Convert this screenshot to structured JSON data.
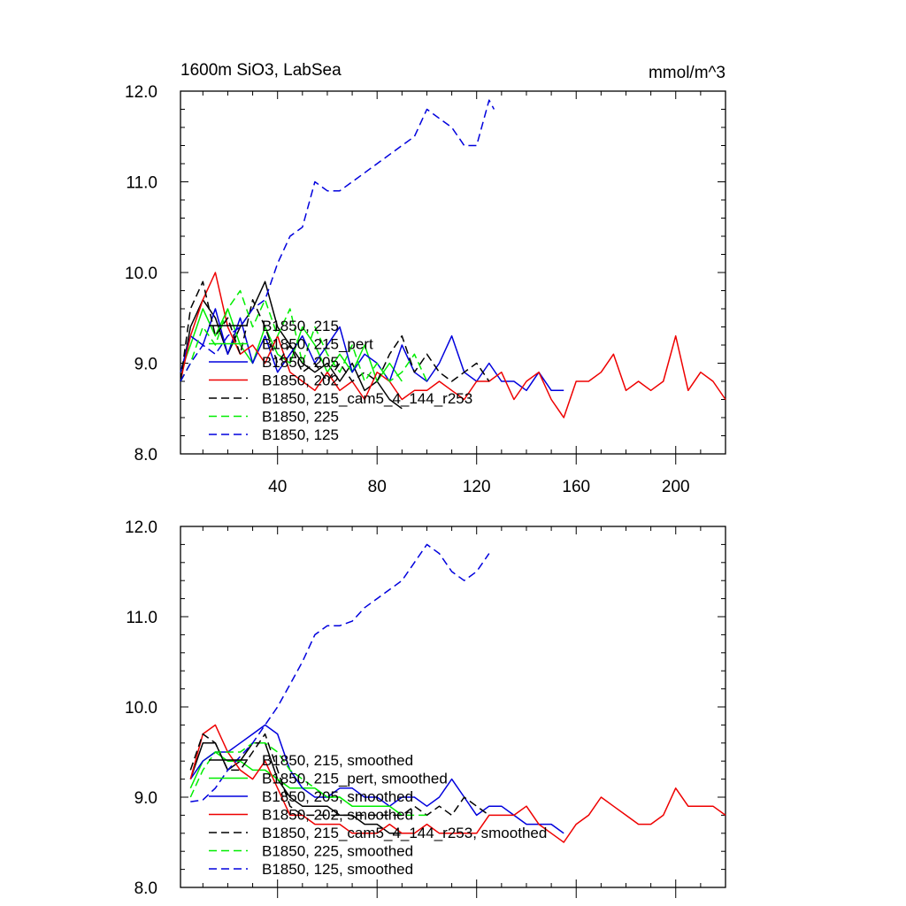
{
  "chart_data": [
    {
      "type": "line",
      "title": "1600m SiO3, LabSea",
      "units": "mmol/m^3",
      "xlim": [
        1,
        220
      ],
      "ylim": [
        8.0,
        12.0
      ],
      "x_ticks": [
        "40",
        "80",
        "120",
        "160",
        "200"
      ],
      "y_ticks": [
        "8.0",
        "9.0",
        "10.0",
        "11.0",
        "12.0"
      ],
      "grid": false,
      "legend_placement": "lower-left",
      "series": [
        {
          "name": "B1850, 215",
          "color": "#000000",
          "dash": "solid",
          "x": [
            1,
            5,
            10,
            15,
            20,
            25,
            30,
            35,
            40,
            45,
            50,
            55,
            60,
            65,
            70,
            75,
            80,
            85,
            90
          ],
          "y": [
            8.8,
            9.4,
            9.7,
            9.5,
            9.1,
            9.4,
            9.6,
            9.9,
            9.4,
            9.2,
            9.0,
            8.9,
            9.0,
            8.8,
            9.0,
            8.7,
            8.8,
            8.6,
            8.5
          ]
        },
        {
          "name": "B1850, 215_pert",
          "color": "#00ee00",
          "dash": "solid",
          "x": [
            1,
            5,
            10,
            15,
            20,
            25,
            30,
            35,
            40,
            45,
            50,
            55,
            60,
            65,
            70,
            75,
            80,
            85,
            90
          ],
          "y": [
            8.9,
            9.2,
            9.6,
            9.3,
            9.6,
            9.2,
            9.0,
            9.4,
            9.1,
            9.0,
            9.4,
            9.2,
            8.9,
            9.1,
            8.9,
            9.2,
            8.8,
            9.0,
            8.8
          ]
        },
        {
          "name": "B1850, 205",
          "color": "#0000dd",
          "dash": "solid",
          "x": [
            1,
            5,
            10,
            15,
            20,
            25,
            30,
            35,
            40,
            45,
            50,
            55,
            60,
            65,
            70,
            75,
            80,
            85,
            90,
            95,
            100,
            105,
            110,
            115,
            120,
            125,
            130,
            135,
            140,
            145,
            150,
            155
          ],
          "y": [
            8.9,
            9.3,
            9.2,
            9.6,
            9.1,
            9.5,
            9.0,
            9.3,
            8.9,
            9.1,
            9.3,
            9.0,
            9.2,
            9.4,
            8.9,
            9.1,
            9.0,
            8.8,
            9.2,
            8.9,
            8.8,
            9.0,
            9.3,
            8.9,
            8.8,
            9.0,
            8.8,
            8.8,
            8.7,
            8.9,
            8.7,
            8.7
          ]
        },
        {
          "name": "B1850, 202",
          "color": "#ee0000",
          "dash": "solid",
          "x": [
            1,
            5,
            10,
            15,
            20,
            25,
            30,
            35,
            40,
            45,
            50,
            55,
            60,
            65,
            70,
            75,
            80,
            85,
            90,
            95,
            100,
            105,
            110,
            115,
            120,
            125,
            130,
            135,
            140,
            145,
            150,
            155,
            160,
            165,
            170,
            175,
            180,
            185,
            190,
            195,
            200,
            205,
            210,
            215,
            220
          ],
          "y": [
            8.8,
            9.3,
            9.7,
            10.0,
            9.4,
            9.1,
            9.2,
            9.0,
            9.3,
            8.9,
            8.8,
            8.7,
            8.9,
            8.7,
            8.8,
            8.6,
            8.9,
            8.8,
            8.6,
            8.7,
            8.7,
            8.8,
            8.7,
            8.6,
            8.8,
            8.8,
            8.9,
            8.6,
            8.8,
            8.9,
            8.6,
            8.4,
            8.8,
            8.8,
            8.9,
            9.1,
            8.7,
            8.8,
            8.7,
            8.8,
            9.3,
            8.7,
            8.9,
            8.8,
            8.6
          ]
        },
        {
          "name": "B1850, 215_cam5_4_144_r253",
          "color": "#000000",
          "dash": "dash",
          "x": [
            1,
            5,
            10,
            15,
            20,
            25,
            30,
            35,
            40,
            45,
            50,
            55,
            60,
            65,
            70,
            75,
            80,
            85,
            90,
            95,
            100,
            105,
            110,
            115,
            120,
            125
          ],
          "y": [
            8.8,
            9.6,
            9.9,
            9.3,
            9.5,
            9.1,
            9.7,
            9.4,
            9.0,
            9.2,
            8.9,
            9.0,
            8.8,
            9.0,
            8.8,
            8.9,
            8.8,
            9.1,
            9.3,
            8.9,
            9.1,
            8.9,
            8.8,
            8.9,
            9.0,
            8.8
          ]
        },
        {
          "name": "B1850, 225",
          "color": "#00ee00",
          "dash": "dash",
          "x": [
            1,
            5,
            10,
            15,
            20,
            25,
            30,
            35,
            40,
            45,
            50,
            55,
            60,
            65,
            70,
            75,
            80,
            85,
            90,
            95,
            100
          ],
          "y": [
            8.8,
            9.0,
            9.4,
            9.2,
            9.6,
            9.8,
            9.4,
            9.7,
            9.3,
            9.6,
            9.0,
            9.4,
            9.1,
            8.9,
            9.2,
            8.8,
            9.0,
            8.8,
            8.9,
            9.1,
            8.8
          ]
        },
        {
          "name": "B1850, 125",
          "color": "#0000dd",
          "dash": "dash",
          "x": [
            1,
            5,
            10,
            15,
            20,
            25,
            30,
            35,
            40,
            45,
            50,
            55,
            60,
            65,
            70,
            75,
            80,
            85,
            90,
            95,
            100,
            105,
            110,
            115,
            120,
            125,
            127
          ],
          "y": [
            8.8,
            9.0,
            9.2,
            9.1,
            9.3,
            9.4,
            9.6,
            9.7,
            10.1,
            10.4,
            10.5,
            11.0,
            10.9,
            10.9,
            11.0,
            11.1,
            11.2,
            11.3,
            11.4,
            11.5,
            11.8,
            11.7,
            11.6,
            11.4,
            11.4,
            11.9,
            11.8
          ]
        }
      ]
    },
    {
      "type": "line",
      "xlim": [
        1,
        220
      ],
      "ylim": [
        8.0,
        12.0
      ],
      "y_ticks": [
        "8.0",
        "9.0",
        "10.0",
        "11.0",
        "12.0"
      ],
      "grid": false,
      "legend_placement": "lower-left",
      "series": [
        {
          "name": "B1850, 215, smoothed",
          "color": "#000000",
          "dash": "solid",
          "x": [
            5,
            10,
            15,
            20,
            25,
            30,
            35,
            40,
            45,
            50,
            55,
            60,
            65,
            70,
            75,
            80,
            85,
            90
          ],
          "y": [
            9.2,
            9.6,
            9.6,
            9.3,
            9.4,
            9.6,
            9.6,
            9.2,
            9.0,
            8.9,
            8.9,
            8.9,
            8.8,
            8.8,
            8.7,
            8.7,
            8.6,
            8.6
          ]
        },
        {
          "name": "B1850, 215_pert, smoothed",
          "color": "#00ee00",
          "dash": "solid",
          "x": [
            5,
            10,
            15,
            20,
            25,
            30,
            35,
            40,
            45,
            50,
            55,
            60,
            65,
            70,
            75,
            80,
            85,
            90
          ],
          "y": [
            9.1,
            9.4,
            9.5,
            9.4,
            9.4,
            9.3,
            9.3,
            9.2,
            9.1,
            9.1,
            9.1,
            9.0,
            9.0,
            8.9,
            8.9,
            8.9,
            8.9,
            8.8
          ]
        },
        {
          "name": "B1850, 205, smoothed",
          "color": "#0000dd",
          "dash": "solid",
          "x": [
            5,
            10,
            15,
            20,
            25,
            30,
            35,
            40,
            45,
            50,
            55,
            60,
            65,
            70,
            75,
            80,
            85,
            90,
            95,
            100,
            105,
            110,
            115,
            120,
            125,
            130,
            135,
            140,
            145,
            150,
            155
          ],
          "y": [
            9.2,
            9.4,
            9.5,
            9.5,
            9.6,
            9.7,
            9.8,
            9.7,
            9.3,
            9.1,
            9.0,
            9.0,
            9.1,
            9.1,
            9.0,
            9.0,
            8.9,
            9.0,
            9.0,
            8.9,
            9.0,
            9.2,
            9.0,
            8.8,
            8.9,
            8.9,
            8.8,
            8.7,
            8.7,
            8.7,
            8.6
          ]
        },
        {
          "name": "B1850, 202, smoothed",
          "color": "#ee0000",
          "dash": "solid",
          "x": [
            5,
            10,
            15,
            20,
            25,
            30,
            35,
            40,
            45,
            50,
            55,
            60,
            65,
            70,
            75,
            80,
            85,
            90,
            95,
            100,
            105,
            110,
            115,
            120,
            125,
            130,
            135,
            140,
            145,
            150,
            155,
            160,
            165,
            170,
            175,
            180,
            185,
            190,
            195,
            200,
            205,
            210,
            215,
            220
          ],
          "y": [
            9.2,
            9.7,
            9.8,
            9.5,
            9.3,
            9.2,
            9.4,
            9.1,
            8.8,
            8.8,
            8.7,
            8.7,
            8.7,
            8.6,
            8.6,
            8.6,
            8.7,
            8.6,
            8.6,
            8.7,
            8.6,
            8.6,
            8.6,
            8.6,
            8.8,
            8.8,
            8.8,
            8.9,
            8.7,
            8.6,
            8.5,
            8.7,
            8.8,
            9.0,
            8.9,
            8.8,
            8.7,
            8.7,
            8.8,
            9.1,
            8.9,
            8.9,
            8.9,
            8.8
          ]
        },
        {
          "name": "B1850, 215_cam5_4_144_r253, smoothed",
          "color": "#000000",
          "dash": "dash",
          "x": [
            5,
            10,
            15,
            20,
            25,
            30,
            35,
            40,
            45,
            50,
            55,
            60,
            65,
            70,
            75,
            80,
            85,
            90,
            95,
            100,
            105,
            110,
            115,
            120,
            125
          ],
          "y": [
            9.3,
            9.7,
            9.6,
            9.3,
            9.3,
            9.5,
            9.7,
            9.3,
            8.9,
            8.8,
            8.8,
            8.8,
            8.8,
            8.8,
            8.8,
            8.8,
            8.8,
            8.8,
            8.9,
            8.8,
            8.9,
            8.8,
            9.0,
            8.9,
            8.8
          ]
        },
        {
          "name": "B1850, 225, smoothed",
          "color": "#00ee00",
          "dash": "dash",
          "x": [
            5,
            10,
            15,
            20,
            25,
            30,
            35,
            40,
            45,
            50,
            55,
            60,
            65,
            70,
            75,
            80,
            85,
            90,
            95,
            100
          ],
          "y": [
            9.0,
            9.3,
            9.5,
            9.5,
            9.5,
            9.6,
            9.6,
            9.5,
            9.3,
            9.2,
            9.1,
            9.0,
            9.0,
            8.9,
            8.9,
            8.9,
            8.9,
            8.8,
            8.8,
            8.8
          ]
        },
        {
          "name": "B1850, 125, smoothed",
          "color": "#0000dd",
          "dash": "dash",
          "x": [
            5,
            10,
            15,
            20,
            25,
            30,
            35,
            40,
            45,
            50,
            55,
            60,
            65,
            70,
            75,
            80,
            85,
            90,
            95,
            100,
            105,
            110,
            115,
            120,
            125
          ],
          "y": [
            8.95,
            8.97,
            9.1,
            9.3,
            9.45,
            9.6,
            9.8,
            10.0,
            10.25,
            10.5,
            10.8,
            10.9,
            10.9,
            10.95,
            11.1,
            11.2,
            11.3,
            11.4,
            11.6,
            11.8,
            11.7,
            11.5,
            11.4,
            11.5,
            11.7
          ]
        }
      ]
    }
  ]
}
